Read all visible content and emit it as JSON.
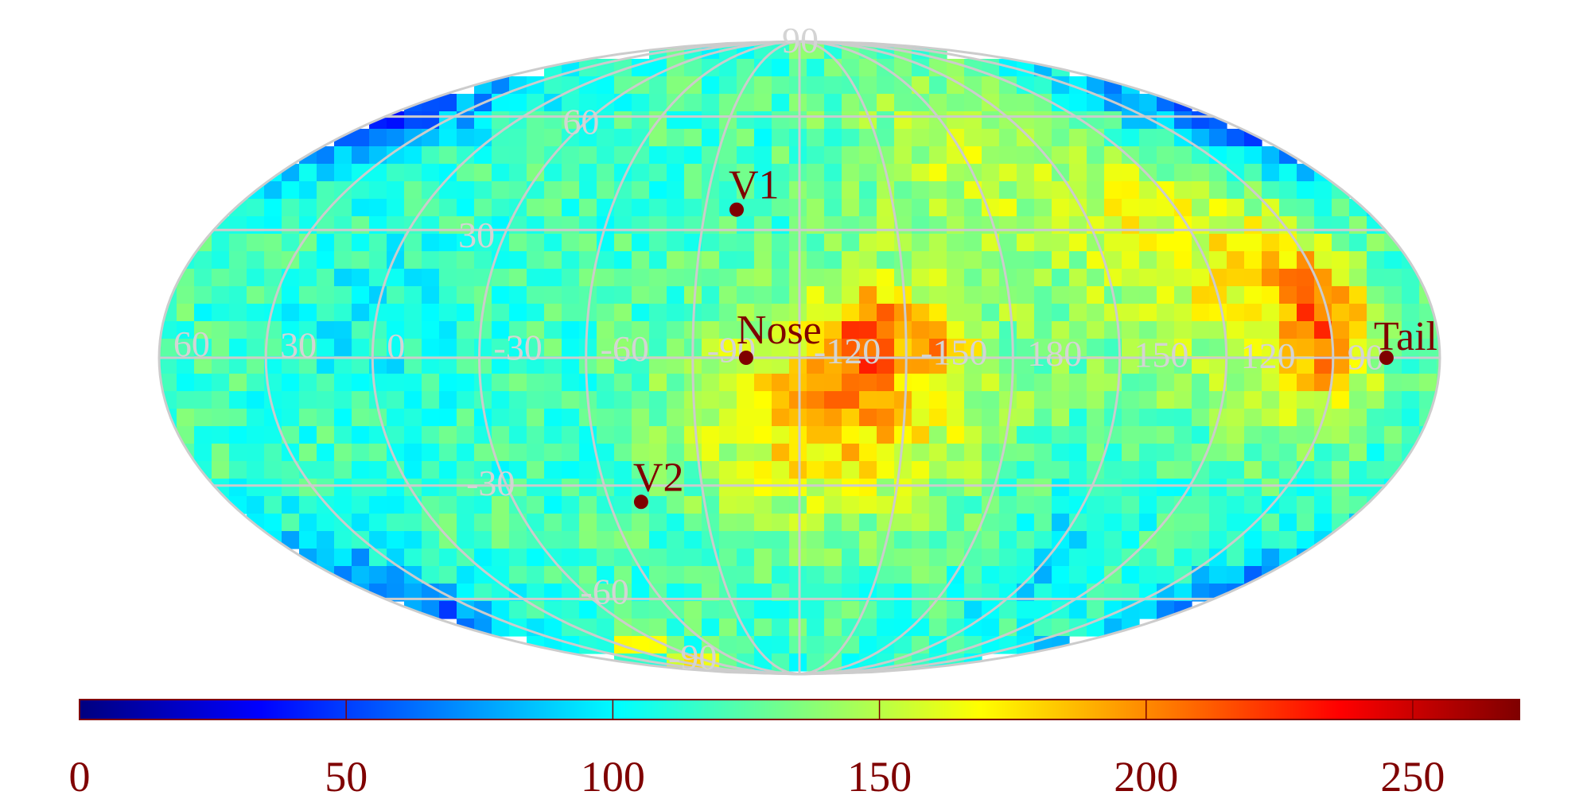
{
  "chart_data": {
    "type": "heatmap",
    "projection": "mollweide",
    "colormap": "jet",
    "colorbar": {
      "min": 0,
      "max": 270,
      "ticks": [
        "0",
        "50",
        "100",
        "150",
        "200",
        "250"
      ]
    },
    "graticule": {
      "latitudes": [
        -90,
        -60,
        -30,
        0,
        30,
        60,
        90
      ],
      "longitude_labels": [
        "60",
        "30",
        "0",
        "-30",
        "-60",
        "-90",
        "-120",
        "-150",
        "180",
        "150",
        "120",
        "90"
      ],
      "latitude_labels": [
        {
          "text": "90",
          "lat": 90
        },
        {
          "text": "60",
          "lat": 60
        },
        {
          "text": "30",
          "lat": 30
        },
        {
          "text": "-30",
          "lat": -30
        },
        {
          "text": "-60",
          "lat": -60
        },
        {
          "text": "-90",
          "lat": -90
        }
      ]
    },
    "field": {
      "background": 118,
      "blobs": [
        {
          "lon": -130,
          "lat": -12,
          "slon": 28,
          "slat": 18,
          "amp": 72
        },
        {
          "lon": -140,
          "lat": 6,
          "slon": 8,
          "slat": 8,
          "amp": 55
        },
        {
          "lon": -160,
          "lat": 4,
          "slon": 6,
          "slat": 6,
          "amp": 35
        },
        {
          "lon": 92,
          "lat": 6,
          "slon": 10,
          "slat": 14,
          "amp": 75
        },
        {
          "lon": 115,
          "lat": 20,
          "slon": 25,
          "slat": 22,
          "amp": 40
        },
        {
          "lon": 150,
          "lat": 40,
          "slon": 25,
          "slat": 25,
          "amp": 20
        },
        {
          "lon": -165,
          "lat": 45,
          "slon": 20,
          "slat": 25,
          "amp": 25
        },
        {
          "lon": 60,
          "lat": 58,
          "slon": 25,
          "slat": 12,
          "amp": -65
        },
        {
          "lon": 55,
          "lat": -60,
          "slon": 20,
          "slat": 12,
          "amp": -60
        },
        {
          "lon": 0,
          "lat": 10,
          "slon": 20,
          "slat": 15,
          "amp": -15
        },
        {
          "lon": -15,
          "lat": -80,
          "slon": 10,
          "slat": 5,
          "amp": 90
        },
        {
          "lon": 145,
          "lat": -50,
          "slon": 12,
          "slat": 15,
          "amp": -25
        }
      ]
    },
    "markers": [
      {
        "label": "V1",
        "lon": -100,
        "lat": 35
      },
      {
        "label": "Nose",
        "lon": -105,
        "lat": 0
      },
      {
        "label": "V2",
        "lon": -70,
        "lat": -34
      },
      {
        "label": "Tail",
        "lon": 75,
        "lat": 0
      }
    ]
  }
}
